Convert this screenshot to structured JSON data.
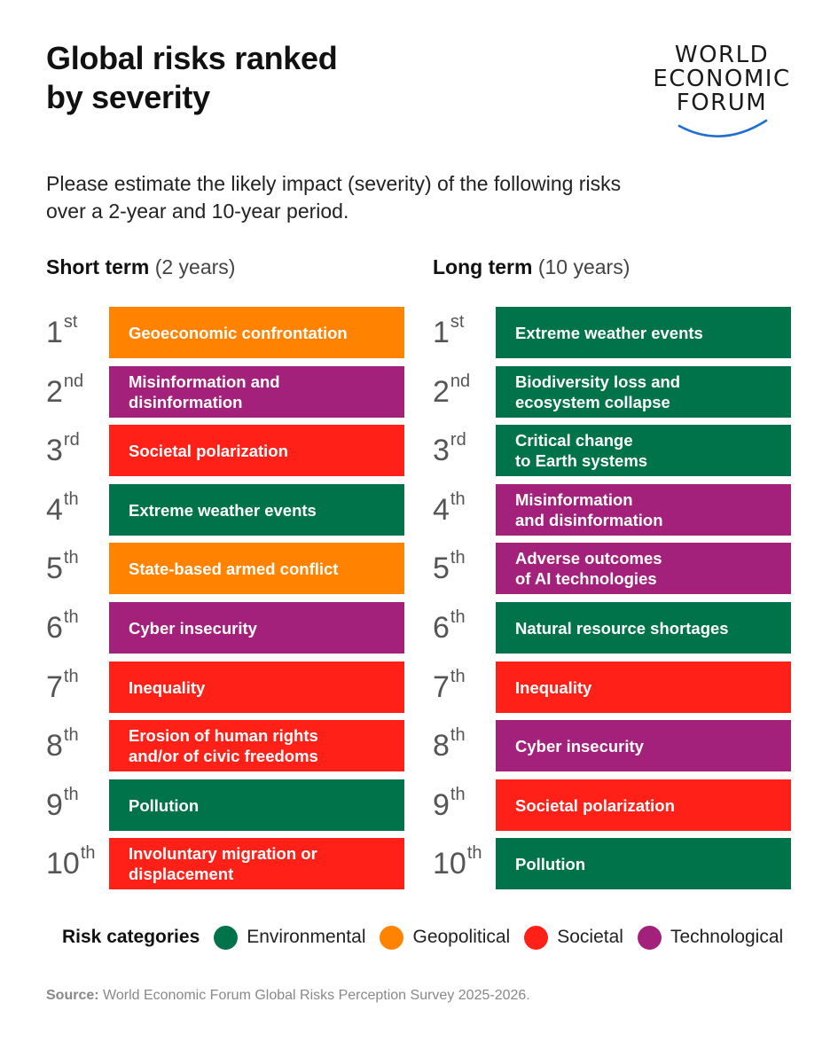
{
  "header": {
    "title_line1": "Global risks ranked",
    "title_line2": "by severity",
    "logo_line1": "WORLD",
    "logo_line2": "ECONOMIC",
    "logo_line3": "FORUM"
  },
  "subtitle": "Please estimate the likely impact (severity) of the following risks over a 2-year and 10-year period.",
  "colors": {
    "Environmental": "#00734a",
    "Geopolitical": "#ff8200",
    "Societal": "#ff2018",
    "Technological": "#a3217a"
  },
  "chart_data": {
    "type": "table",
    "title": "Global risks ranked by severity",
    "columns": [
      {
        "key": "short",
        "label": "Short term",
        "period": "(2 years)",
        "items": [
          {
            "rank_num": "1",
            "rank_suffix": "st",
            "label": "Geoeconomic confrontation",
            "category": "Geopolitical"
          },
          {
            "rank_num": "2",
            "rank_suffix": "nd",
            "label": "Misinformation and\ndisinformation",
            "category": "Technological"
          },
          {
            "rank_num": "3",
            "rank_suffix": "rd",
            "label": "Societal polarization",
            "category": "Societal"
          },
          {
            "rank_num": "4",
            "rank_suffix": "th",
            "label": "Extreme weather events",
            "category": "Environmental"
          },
          {
            "rank_num": "5",
            "rank_suffix": "th",
            "label": "State-based armed conflict",
            "category": "Geopolitical"
          },
          {
            "rank_num": "6",
            "rank_suffix": "th",
            "label": "Cyber insecurity",
            "category": "Technological"
          },
          {
            "rank_num": "7",
            "rank_suffix": "th",
            "label": "Inequality",
            "category": "Societal"
          },
          {
            "rank_num": "8",
            "rank_suffix": "th",
            "label": "Erosion of human rights\nand/or of civic freedoms",
            "category": "Societal"
          },
          {
            "rank_num": "9",
            "rank_suffix": "th",
            "label": "Pollution",
            "category": "Environmental"
          },
          {
            "rank_num": "10",
            "rank_suffix": "th",
            "label": "Involuntary migration or\ndisplacement",
            "category": "Societal"
          }
        ]
      },
      {
        "key": "long",
        "label": "Long term",
        "period": "(10 years)",
        "items": [
          {
            "rank_num": "1",
            "rank_suffix": "st",
            "label": "Extreme weather events",
            "category": "Environmental"
          },
          {
            "rank_num": "2",
            "rank_suffix": "nd",
            "label": "Biodiversity loss and\necosystem collapse",
            "category": "Environmental"
          },
          {
            "rank_num": "3",
            "rank_suffix": "rd",
            "label": "Critical change\nto Earth systems",
            "category": "Environmental"
          },
          {
            "rank_num": "4",
            "rank_suffix": "th",
            "label": "Misinformation\nand disinformation",
            "category": "Technological"
          },
          {
            "rank_num": "5",
            "rank_suffix": "th",
            "label": "Adverse outcomes\nof AI technologies",
            "category": "Technological"
          },
          {
            "rank_num": "6",
            "rank_suffix": "th",
            "label": "Natural resource shortages",
            "category": "Environmental"
          },
          {
            "rank_num": "7",
            "rank_suffix": "th",
            "label": "Inequality",
            "category": "Societal"
          },
          {
            "rank_num": "8",
            "rank_suffix": "th",
            "label": "Cyber insecurity",
            "category": "Technological"
          },
          {
            "rank_num": "9",
            "rank_suffix": "th",
            "label": "Societal polarization",
            "category": "Societal"
          },
          {
            "rank_num": "10",
            "rank_suffix": "th",
            "label": "Pollution",
            "category": "Environmental"
          }
        ]
      }
    ],
    "legend": {
      "title": "Risk categories",
      "entries": [
        "Environmental",
        "Geopolitical",
        "Societal",
        "Technological"
      ]
    }
  },
  "footer": {
    "source_label": "Source:",
    "source_text": "World Economic Forum Global Risks Perception Survey 2025-2026."
  }
}
